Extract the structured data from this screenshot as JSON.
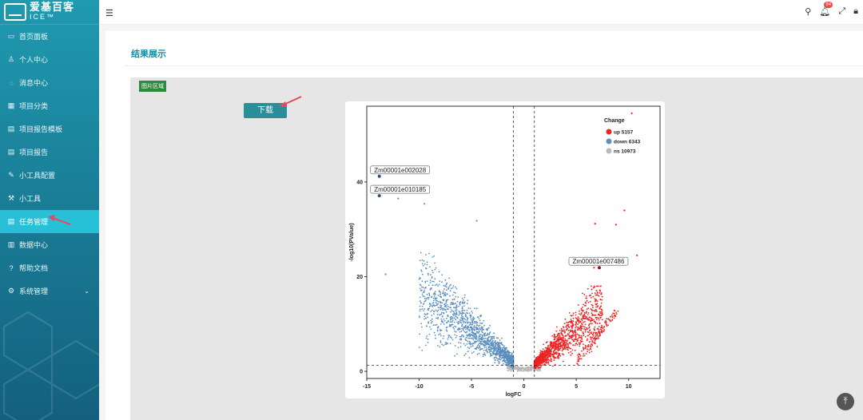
{
  "app": {
    "logo_line1": "爱基百客",
    "logo_line2": "ICE™"
  },
  "sidebar": {
    "items": [
      {
        "label": "首页面板",
        "icon": "dashboard-icon"
      },
      {
        "label": "个人中心",
        "icon": "user-icon"
      },
      {
        "label": "消息中心",
        "icon": "message-icon"
      },
      {
        "label": "项目分类",
        "icon": "grid-icon"
      },
      {
        "label": "项目报告模板",
        "icon": "document-icon"
      },
      {
        "label": "项目报告",
        "icon": "document-icon"
      },
      {
        "label": "小工具配置",
        "icon": "edit-icon"
      },
      {
        "label": "小工具",
        "icon": "tool-icon"
      },
      {
        "label": "任务管理",
        "icon": "list-icon",
        "active": true
      },
      {
        "label": "数据中心",
        "icon": "database-icon"
      },
      {
        "label": "帮助文档",
        "icon": "help-icon"
      },
      {
        "label": "系统管理",
        "icon": "gear-icon",
        "has_children": true
      }
    ]
  },
  "header": {
    "notification_count": "94"
  },
  "main": {
    "title": "结果展示",
    "image_area_label": "图片区域",
    "download_label": "下载"
  },
  "colors": {
    "accent": "#1a8aa0",
    "up": "#ee2222",
    "down": "#5b8fc0",
    "ns": "#b8b8b8",
    "label_point": "#8b1a1a"
  },
  "chart_data": {
    "type": "scatter",
    "xlabel": "logFC",
    "ylabel": "-log10(PValue)",
    "xlim": [
      -15,
      13
    ],
    "ylim": [
      -1.5,
      56
    ],
    "xticks": [
      -15,
      -10,
      -5,
      0,
      5,
      10
    ],
    "yticks": [
      0,
      20,
      40
    ],
    "vlines": [
      -1,
      1
    ],
    "hline": 1.3,
    "legend": {
      "title": "Change",
      "position": "top-right",
      "entries": [
        {
          "label": "up 5157",
          "color": "#ee2222"
        },
        {
          "label": "down 6343",
          "color": "#5b8fc0"
        },
        {
          "label": "ns 10973",
          "color": "#b8b8b8"
        }
      ]
    },
    "series": [
      {
        "name": "up",
        "count": 5157
      },
      {
        "name": "down",
        "count": 6343
      },
      {
        "name": "ns",
        "count": 10973
      }
    ],
    "annotations": [
      {
        "label": "Zm00001e002028",
        "x": -13.8,
        "y": 41.2
      },
      {
        "label": "Zm00001e010185",
        "x": -13.8,
        "y": 37.1
      },
      {
        "label": "Zm00001e007486",
        "x": 7.2,
        "y": 21.9
      }
    ],
    "outliers": [
      {
        "x": 10.3,
        "y": 54.5,
        "c": "up"
      },
      {
        "x": 9.6,
        "y": 34.0,
        "c": "up"
      },
      {
        "x": 6.8,
        "y": 31.2,
        "c": "up"
      },
      {
        "x": 8.8,
        "y": 31.0,
        "c": "up"
      },
      {
        "x": 10.8,
        "y": 24.5,
        "c": "up"
      },
      {
        "x": 6.7,
        "y": 21.9,
        "c": "up"
      },
      {
        "x": -12.0,
        "y": 36.5,
        "c": "down"
      },
      {
        "x": -9.5,
        "y": 35.4,
        "c": "down"
      },
      {
        "x": -13.2,
        "y": 20.5,
        "c": "down"
      },
      {
        "x": -4.5,
        "y": 31.8,
        "c": "down"
      }
    ]
  }
}
